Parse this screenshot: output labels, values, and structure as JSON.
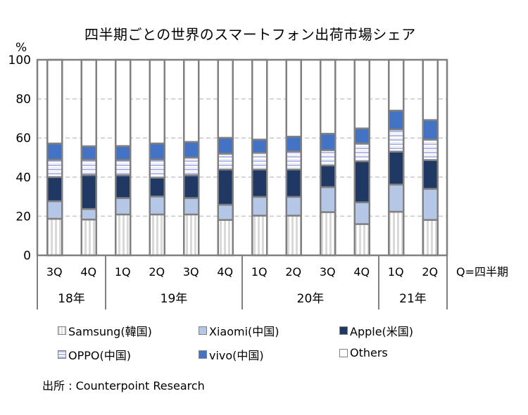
{
  "chart_data": {
    "type": "bar",
    "stacked": true,
    "title": "四半期ごとの世界のスマートフォン出荷市場シェア",
    "ylabel": "%",
    "ylim": [
      0,
      100
    ],
    "yticks": [
      "0",
      "20",
      "40",
      "60",
      "80",
      "100"
    ],
    "grid": true,
    "categories": [
      "3Q",
      "4Q",
      "1Q",
      "2Q",
      "3Q",
      "4Q",
      "1Q",
      "2Q",
      "3Q",
      "4Q",
      "1Q",
      "2Q"
    ],
    "year_groups": [
      {
        "label": "18年",
        "count": 2
      },
      {
        "label": "19年",
        "count": 4
      },
      {
        "label": "20年",
        "count": 4
      },
      {
        "label": "21年",
        "count": 2
      }
    ],
    "x_note": "Q=四半期",
    "series": [
      {
        "name": "Samsung(韓国)",
        "color": "#d9d9d9",
        "pattern": "vertical-stripes",
        "values": [
          18.7,
          18.3,
          20.9,
          20.9,
          20.9,
          18.1,
          20.3,
          20.3,
          22.1,
          16.0,
          22.3,
          18.1
        ]
      },
      {
        "name": "Xiaomi(中国)",
        "color": "#b4c7e7",
        "pattern": "solid",
        "values": [
          9.0,
          5.4,
          8.4,
          9.2,
          8.4,
          7.8,
          9.6,
          9.6,
          12.8,
          11.1,
          13.9,
          15.9
        ]
      },
      {
        "name": "Apple(米国)",
        "color": "#1f3864",
        "pattern": "solid",
        "values": [
          12.3,
          17.3,
          11.6,
          9.6,
          11.6,
          18.0,
          14.0,
          14.0,
          11.1,
          21.0,
          16.8,
          14.7
        ]
      },
      {
        "name": "OPPO(中国)",
        "color": "#b4b9e8",
        "pattern": "horizontal-stripes",
        "values": [
          8.9,
          7.9,
          7.9,
          9.3,
          9.1,
          8.1,
          8.5,
          9.3,
          7.8,
          9.1,
          11.3,
          10.5
        ]
      },
      {
        "name": "vivo(中国)",
        "color": "#4472c4",
        "pattern": "solid",
        "values": [
          8.3,
          6.9,
          7.1,
          8.2,
          8.0,
          8.1,
          6.8,
          7.5,
          8.4,
          7.7,
          9.7,
          10.0
        ]
      },
      {
        "name": "Others",
        "color": "#ffffff",
        "pattern": "solid",
        "values": [
          42.8,
          44.2,
          44.1,
          42.8,
          42.0,
          39.9,
          40.8,
          39.3,
          37.8,
          35.1,
          26.0,
          30.8
        ]
      }
    ],
    "legend_position": "bottom",
    "legend_order": [
      0,
      1,
      2,
      3,
      4,
      5
    ]
  },
  "source": "出所 : Counterpoint Research"
}
